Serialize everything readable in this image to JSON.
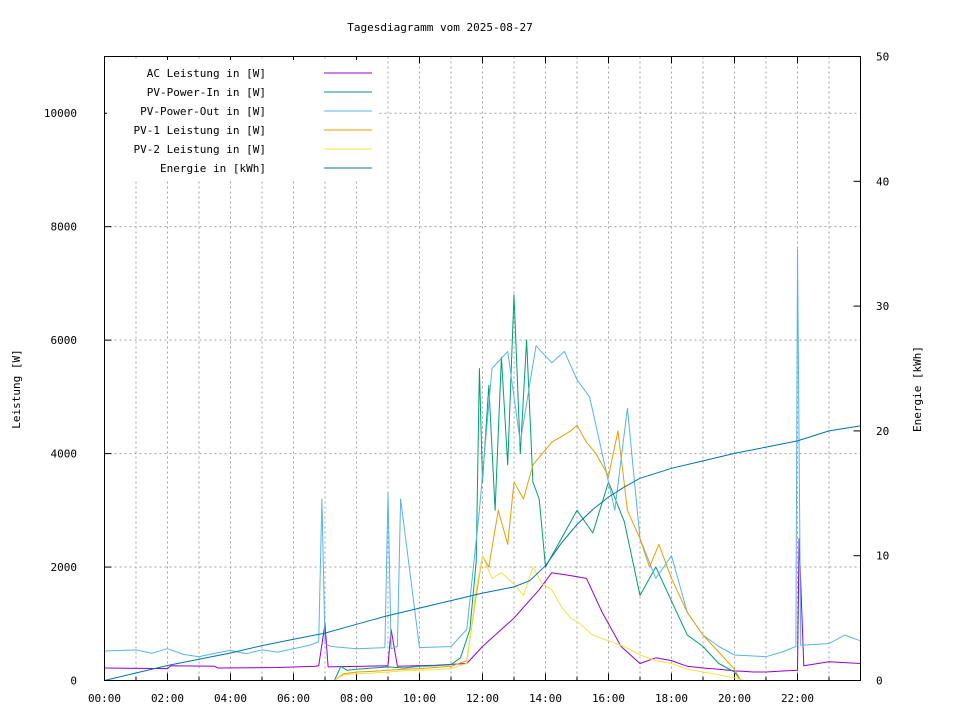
{
  "chart_data": {
    "type": "line",
    "title": "Tagesdiagramm vom 2025-08-27",
    "xlabel": "",
    "ylabel": "Leistung [W]",
    "y2label": "Energie [kWh]",
    "xlim": [
      0,
      24
    ],
    "ylim": [
      0,
      11000
    ],
    "y2lim": [
      0,
      50
    ],
    "x_ticks": [
      {
        "v": 0,
        "label": "00:00"
      },
      {
        "v": 2,
        "label": "02:00"
      },
      {
        "v": 4,
        "label": "04:00"
      },
      {
        "v": 6,
        "label": "06:00"
      },
      {
        "v": 8,
        "label": "08:00"
      },
      {
        "v": 10,
        "label": "10:00"
      },
      {
        "v": 12,
        "label": "12:00"
      },
      {
        "v": 14,
        "label": "14:00"
      },
      {
        "v": 16,
        "label": "16:00"
      },
      {
        "v": 18,
        "label": "18:00"
      },
      {
        "v": 20,
        "label": "20:00"
      },
      {
        "v": 22,
        "label": "22:00"
      }
    ],
    "x_minor_grid": [
      1,
      3,
      5,
      7,
      9,
      11,
      13,
      15,
      17,
      19,
      21,
      23
    ],
    "y_ticks": [
      {
        "v": 0,
        "label": "0"
      },
      {
        "v": 2000,
        "label": "2000"
      },
      {
        "v": 4000,
        "label": "4000"
      },
      {
        "v": 6000,
        "label": "6000"
      },
      {
        "v": 8000,
        "label": "8000"
      },
      {
        "v": 10000,
        "label": "10000"
      }
    ],
    "y2_ticks": [
      {
        "v": 0,
        "label": "0"
      },
      {
        "v": 10,
        "label": "10"
      },
      {
        "v": 20,
        "label": "20"
      },
      {
        "v": 30,
        "label": "30"
      },
      {
        "v": 40,
        "label": "40"
      },
      {
        "v": 50,
        "label": "50"
      }
    ],
    "grid": true,
    "legend_position": "top-left",
    "series": [
      {
        "name": "AC Leistung in [W]",
        "color": "#9400d3",
        "axis": "y",
        "x": [
          0,
          2,
          2.1,
          3.5,
          3.6,
          5.5,
          6.7,
          6.8,
          7.0,
          7.1,
          8.2,
          9.0,
          9.1,
          9.3,
          10.5,
          11.5,
          12.0,
          13.0,
          13.8,
          14.2,
          14.8,
          15.3,
          15.8,
          16.4,
          17.0,
          17.5,
          18.0,
          18.5,
          19.0,
          19.5,
          20.0,
          20.3,
          20.6,
          21.0,
          21.6,
          22.0,
          22.05,
          22.2,
          23.0,
          24.0
        ],
        "y": [
          220,
          210,
          260,
          250,
          220,
          230,
          250,
          260,
          1000,
          240,
          250,
          260,
          900,
          250,
          270,
          300,
          600,
          1100,
          1600,
          1900,
          1850,
          1800,
          1200,
          600,
          300,
          400,
          350,
          250,
          220,
          200,
          170,
          160,
          150,
          150,
          170,
          180,
          2500,
          260,
          330,
          300
        ]
      },
      {
        "name": "PV-Power-In in [W]",
        "color": "#009e73",
        "axis": "y",
        "x": [
          0,
          7.3,
          7.5,
          7.7,
          8.0,
          8.5,
          9.0,
          9.5,
          10.0,
          10.5,
          11.0,
          11.3,
          11.6,
          11.8,
          11.9,
          12.0,
          12.2,
          12.4,
          12.6,
          12.8,
          13.0,
          13.2,
          13.4,
          13.6,
          13.8,
          14.0,
          14.5,
          15.0,
          15.5,
          16.0,
          16.5,
          17.0,
          17.5,
          18.0,
          18.5,
          19.0,
          19.5,
          20.0,
          20.2,
          24.0
        ],
        "y": [
          0,
          0,
          250,
          180,
          200,
          220,
          240,
          220,
          250,
          260,
          280,
          400,
          900,
          2100,
          5500,
          3500,
          5200,
          3000,
          5700,
          3800,
          6800,
          4000,
          6000,
          3500,
          3200,
          2000,
          2500,
          3000,
          2600,
          3500,
          2800,
          1500,
          2000,
          1400,
          800,
          600,
          300,
          150,
          0,
          0
        ]
      },
      {
        "name": "PV-Power-Out in [W]",
        "color": "#56b4e9",
        "axis": "y",
        "x": [
          0,
          1,
          1.5,
          2,
          2.5,
          3,
          3.5,
          4,
          4.5,
          5,
          5.5,
          6,
          6.5,
          6.8,
          6.9,
          7.0,
          7.2,
          8,
          8.9,
          9.0,
          9.1,
          9.3,
          9.4,
          10,
          11,
          11.5,
          11.9,
          12.3,
          12.8,
          13.2,
          13.7,
          14.2,
          14.6,
          15.0,
          15.4,
          15.8,
          16.2,
          16.6,
          17.0,
          17.5,
          18.0,
          18.5,
          19.0,
          19.5,
          20,
          21,
          21.5,
          21.95,
          22.0,
          22.1,
          23,
          23.5,
          24
        ],
        "y": [
          520,
          540,
          480,
          560,
          460,
          420,
          480,
          530,
          470,
          540,
          500,
          560,
          620,
          680,
          3200,
          650,
          600,
          560,
          580,
          3300,
          560,
          600,
          3200,
          580,
          600,
          900,
          3000,
          5500,
          5800,
          4200,
          5900,
          5600,
          5800,
          5300,
          5000,
          4000,
          3000,
          4800,
          2500,
          1800,
          2200,
          1200,
          800,
          600,
          450,
          420,
          500,
          600,
          7600,
          620,
          650,
          800,
          700
        ]
      },
      {
        "name": "PV-1 Leistung in [W]",
        "color": "#e69f00",
        "axis": "y",
        "x": [
          0,
          7.3,
          7.6,
          8.0,
          8.5,
          9.0,
          9.5,
          10.0,
          10.5,
          11.0,
          11.5,
          11.8,
          12.0,
          12.2,
          12.5,
          12.8,
          13.0,
          13.3,
          13.6,
          13.9,
          14.2,
          14.5,
          14.8,
          15.0,
          15.3,
          15.6,
          16.0,
          16.3,
          16.6,
          17.0,
          17.3,
          17.6,
          18.0,
          18.5,
          19.0,
          19.5,
          20.0,
          20.2,
          24.0
        ],
        "y": [
          0,
          0,
          120,
          150,
          160,
          180,
          200,
          210,
          230,
          250,
          350,
          1500,
          2200,
          2000,
          3000,
          2400,
          3500,
          3200,
          3800,
          4000,
          4200,
          4300,
          4400,
          4500,
          4200,
          4000,
          3600,
          4400,
          3000,
          2500,
          2000,
          2400,
          1800,
          1200,
          800,
          500,
          200,
          0,
          0
        ]
      },
      {
        "name": "PV-2 Leistung in [W]",
        "color": "#f0e442",
        "axis": "y",
        "x": [
          0,
          7.3,
          7.6,
          8.0,
          8.5,
          9.0,
          9.5,
          10.0,
          10.5,
          11.0,
          11.5,
          11.8,
          12.0,
          12.3,
          12.6,
          13.0,
          13.3,
          13.6,
          13.9,
          14.2,
          14.5,
          14.8,
          15.1,
          15.5,
          16.0,
          16.5,
          17.0,
          17.5,
          18.0,
          18.5,
          19.0,
          19.5,
          20.0,
          20.3,
          24.0
        ],
        "y": [
          0,
          0,
          100,
          120,
          130,
          150,
          170,
          180,
          190,
          210,
          300,
          1600,
          2200,
          1800,
          1900,
          1700,
          1500,
          2000,
          1700,
          1600,
          1300,
          1100,
          1000,
          800,
          700,
          600,
          450,
          350,
          300,
          200,
          150,
          100,
          50,
          0,
          0
        ]
      },
      {
        "name": "Energie in [kWh]",
        "color": "#0072b2",
        "axis": "y2",
        "x": [
          0,
          1,
          2,
          3,
          4,
          5,
          6,
          7,
          8,
          9,
          10,
          11,
          12,
          13,
          13.5,
          14,
          14.5,
          15,
          15.5,
          16,
          16.5,
          17,
          18,
          19,
          20,
          21,
          22,
          23,
          24
        ],
        "y": [
          0,
          0.6,
          1.2,
          1.7,
          2.2,
          2.8,
          3.3,
          3.8,
          4.5,
          5.2,
          5.8,
          6.4,
          7.0,
          7.5,
          8.0,
          9.2,
          11.0,
          12.5,
          13.7,
          14.7,
          15.5,
          16.2,
          17.0,
          17.6,
          18.2,
          18.7,
          19.2,
          20.0,
          20.4
        ]
      }
    ]
  }
}
